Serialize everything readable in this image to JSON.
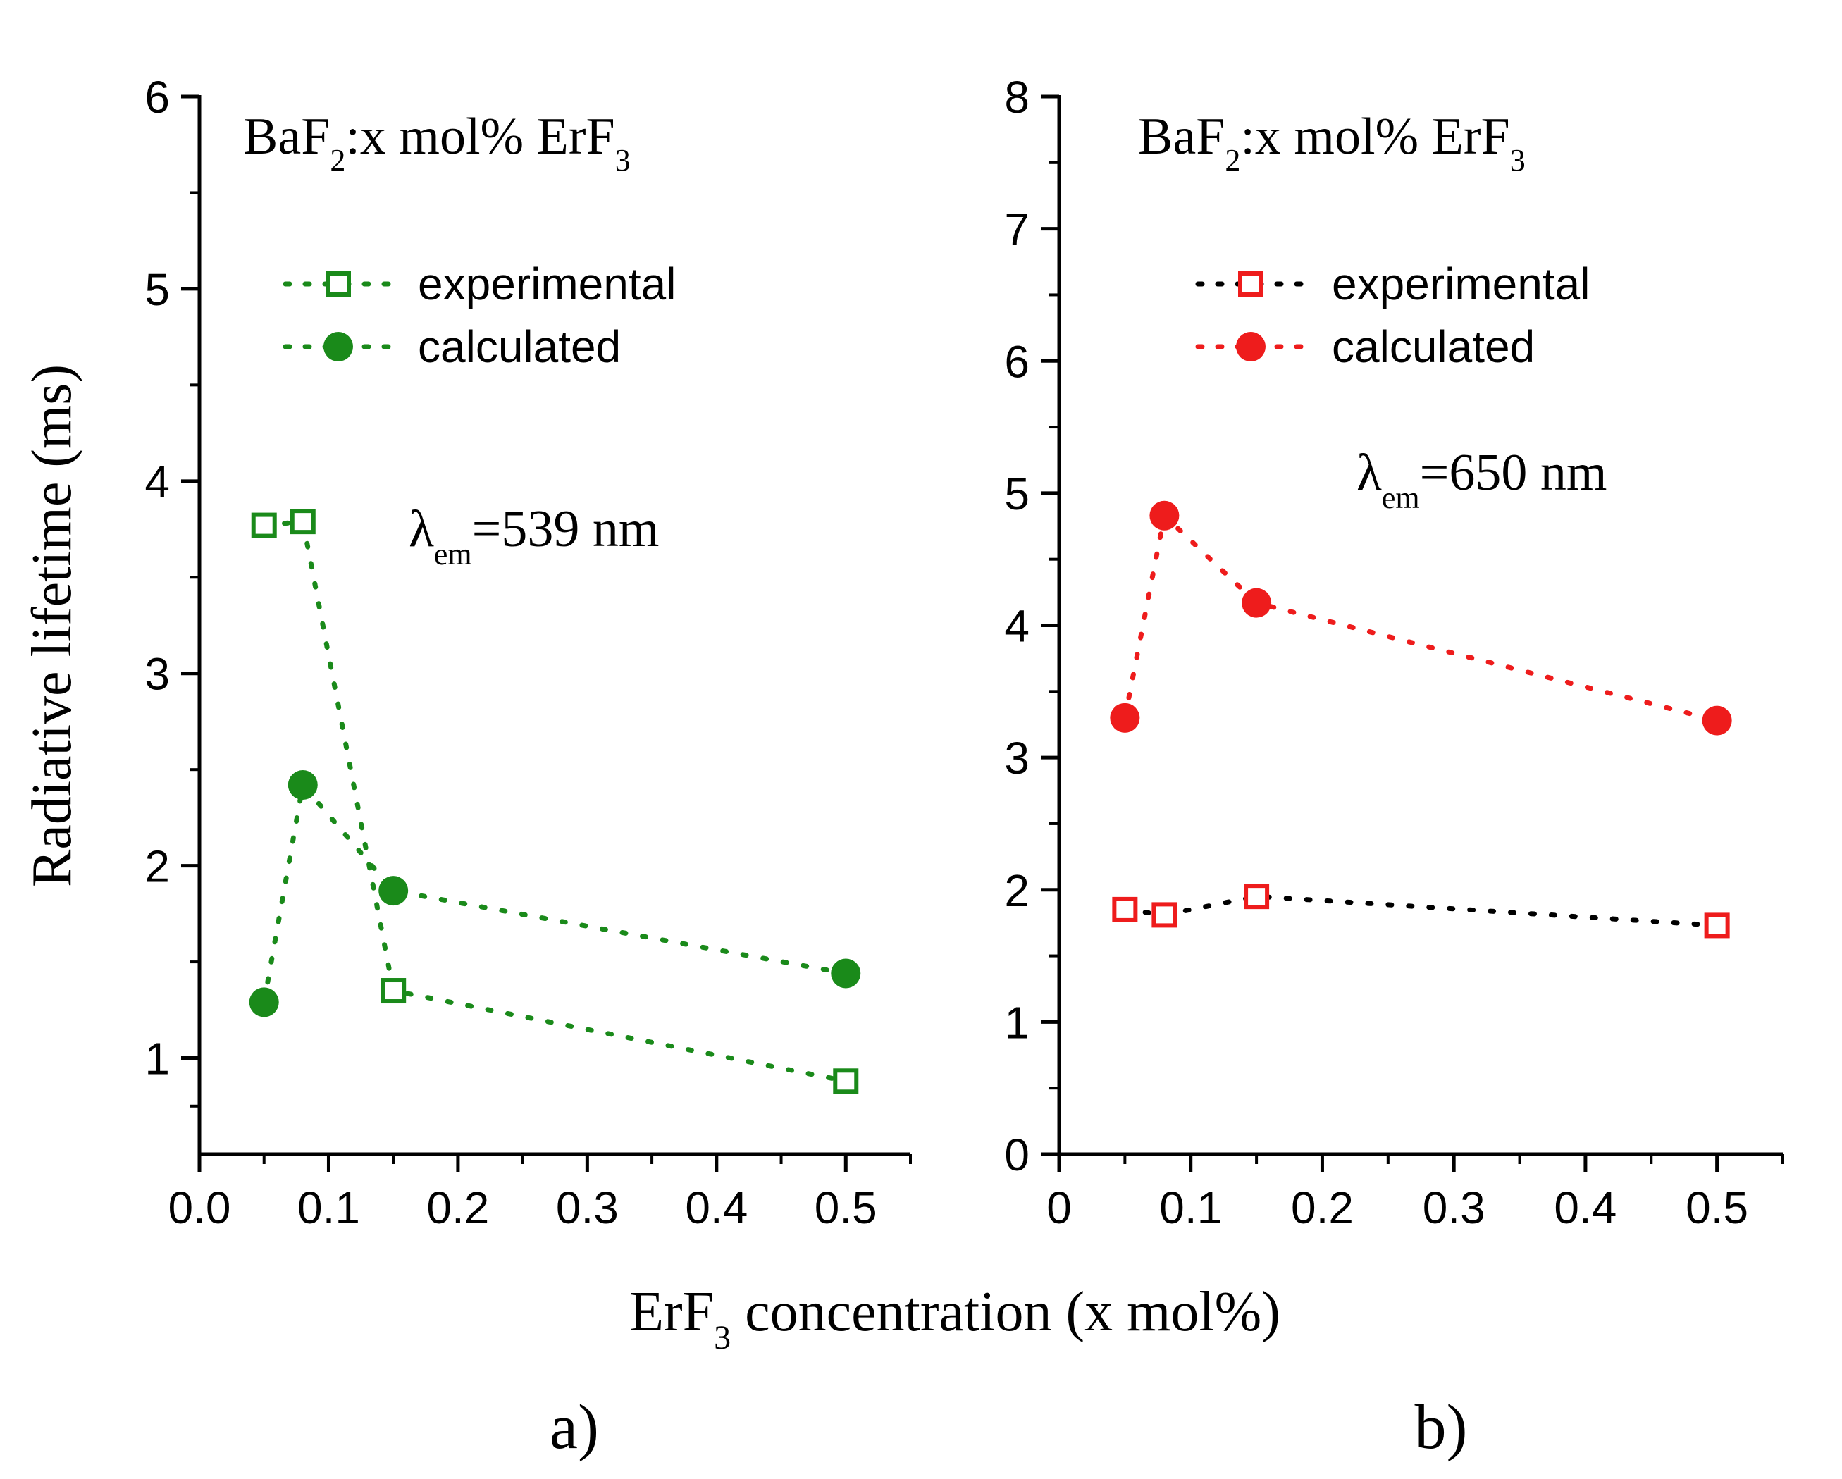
{
  "figure": {
    "shared_xlabel": {
      "main": "ErF",
      "sub": "3",
      "rest": " concentration (x mol%)"
    }
  },
  "chart_data": [
    {
      "type": "scatter",
      "panel_label": "a)",
      "title": {
        "p1": "BaF",
        "s1": "2",
        "p2": ":x mol% ErF",
        "s2": "3"
      },
      "annotation": {
        "lambda": "λ",
        "sub": "em",
        "rest": "=539 nm"
      },
      "xlabel": "ErF3 concentration (x mol%)",
      "ylabel": "Radiative lifetime (ms)",
      "xlim": [
        0,
        0.55
      ],
      "ylim": [
        0.5,
        6
      ],
      "xticks": [
        0.0,
        0.1,
        0.2,
        0.3,
        0.4,
        0.5
      ],
      "xtick_labels": [
        "0.0",
        "0.1",
        "0.2",
        "0.3",
        "0.4",
        "0.5"
      ],
      "yticks": [
        1,
        2,
        3,
        4,
        5,
        6
      ],
      "ytick_labels": [
        "1",
        "2",
        "3",
        "4",
        "5",
        "6"
      ],
      "legend_position": "top-left",
      "series": [
        {
          "name": "experimental",
          "marker": "open-square",
          "color": "#1a8a1a",
          "line_color": "#1a8a1a",
          "x": [
            0.05,
            0.08,
            0.15,
            0.5
          ],
          "y": [
            3.77,
            3.79,
            1.35,
            0.88
          ]
        },
        {
          "name": "calculated",
          "marker": "filled-circle",
          "color": "#1a8a1a",
          "line_color": "#1a8a1a",
          "x": [
            0.05,
            0.08,
            0.15,
            0.5
          ],
          "y": [
            1.29,
            2.42,
            1.87,
            1.44
          ]
        }
      ]
    },
    {
      "type": "scatter",
      "panel_label": "b)",
      "title": {
        "p1": "BaF",
        "s1": "2",
        "p2": ":x mol% ErF",
        "s2": "3"
      },
      "annotation": {
        "lambda": "λ",
        "sub": "em",
        "rest": "=650 nm"
      },
      "xlabel": "ErF3 concentration (x mol%)",
      "ylabel": "",
      "xlim": [
        0,
        0.55
      ],
      "ylim": [
        0,
        8
      ],
      "xticks": [
        0,
        0.1,
        0.2,
        0.3,
        0.4,
        0.5
      ],
      "xtick_labels": [
        "0",
        "0.1",
        "0.2",
        "0.3",
        "0.4",
        "0.5"
      ],
      "yticks": [
        0,
        1,
        2,
        3,
        4,
        5,
        6,
        7,
        8
      ],
      "ytick_labels": [
        "0",
        "1",
        "2",
        "3",
        "4",
        "5",
        "6",
        "7",
        "8"
      ],
      "legend_position": "top-left",
      "series": [
        {
          "name": "experimental",
          "marker": "open-square",
          "color": "#ee1c1c",
          "line_color": "#000000",
          "x": [
            0.05,
            0.08,
            0.15,
            0.5
          ],
          "y": [
            1.85,
            1.81,
            1.95,
            1.73
          ]
        },
        {
          "name": "calculated",
          "marker": "filled-circle",
          "color": "#ee1c1c",
          "line_color": "#ee1c1c",
          "x": [
            0.05,
            0.08,
            0.15,
            0.5
          ],
          "y": [
            3.3,
            4.83,
            4.17,
            3.28
          ]
        }
      ]
    }
  ]
}
